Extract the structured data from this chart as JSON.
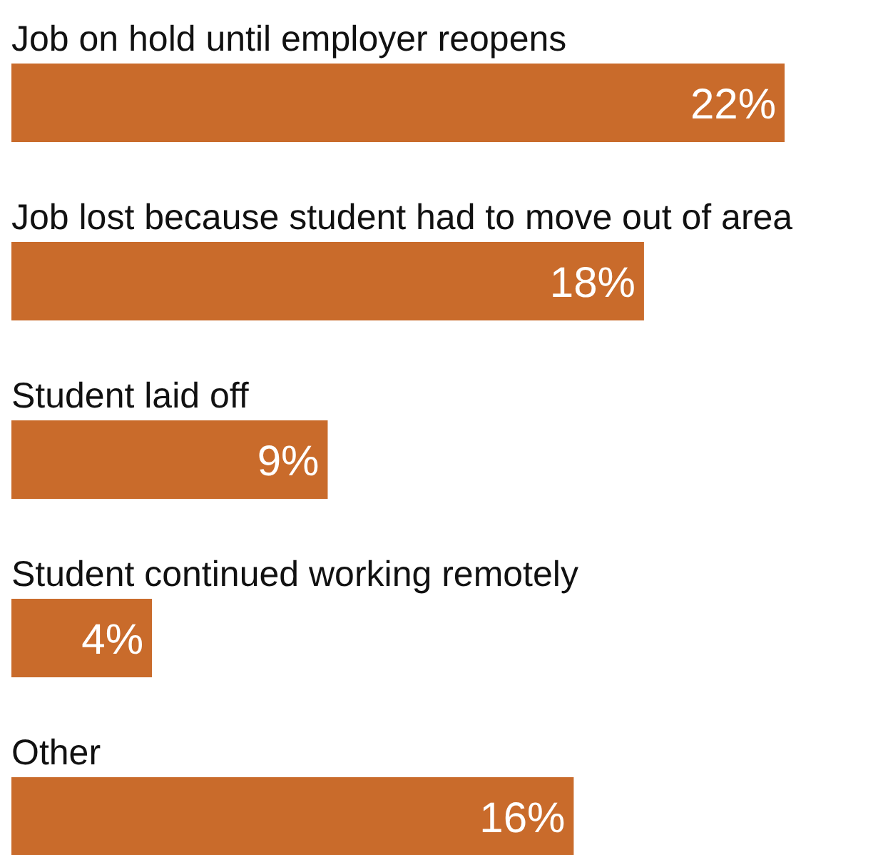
{
  "chart_data": {
    "type": "bar",
    "orientation": "horizontal",
    "categories": [
      "Job on hold until employer reopens",
      "Job lost because student had to move out of area",
      "Student laid off",
      "Student continued working remotely",
      "Other"
    ],
    "values": [
      22,
      18,
      9,
      4,
      16
    ],
    "value_labels": [
      "22%",
      "18%",
      "9%",
      "4%",
      "16%"
    ],
    "color": "#c96b2b"
  }
}
